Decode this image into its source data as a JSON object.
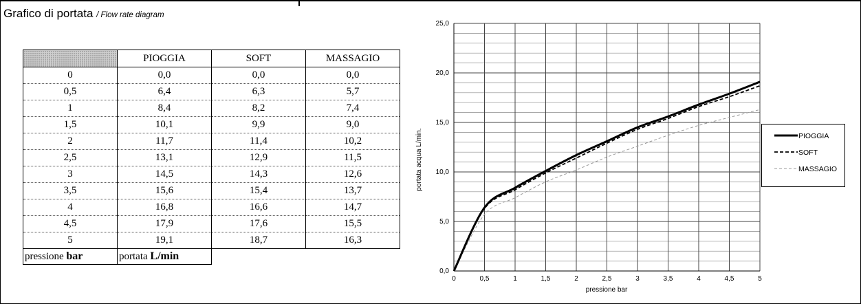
{
  "header": {
    "title_main": "Grafico di portata",
    "title_sub": "/ Flow rate diagram"
  },
  "table": {
    "columns": [
      "PIOGGIA",
      "SOFT",
      "MASSAGIO"
    ],
    "rows": [
      [
        "0",
        "0,0",
        "0,0",
        "0,0"
      ],
      [
        "0,5",
        "6,4",
        "6,3",
        "5,7"
      ],
      [
        "1",
        "8,4",
        "8,2",
        "7,4"
      ],
      [
        "1,5",
        "10,1",
        "9,9",
        "9,0"
      ],
      [
        "2",
        "11,7",
        "11,4",
        "10,2"
      ],
      [
        "2,5",
        "13,1",
        "12,9",
        "11,5"
      ],
      [
        "3",
        "14,5",
        "14,3",
        "12,6"
      ],
      [
        "3,5",
        "15,6",
        "15,4",
        "13,7"
      ],
      [
        "4",
        "16,8",
        "16,6",
        "14,7"
      ],
      [
        "4,5",
        "17,9",
        "17,6",
        "15,5"
      ],
      [
        "5",
        "19,1",
        "18,7",
        "16,3"
      ]
    ],
    "footer": {
      "pressure_label": "pressione",
      "pressure_unit": "bar",
      "flow_label": "portata",
      "flow_unit": "L/min"
    }
  },
  "chart_data": {
    "type": "line",
    "x": [
      0,
      0.5,
      1,
      1.5,
      2,
      2.5,
      3,
      3.5,
      4,
      4.5,
      5
    ],
    "series": [
      {
        "name": "PIOGGIA",
        "values": [
          0.0,
          6.4,
          8.4,
          10.1,
          11.7,
          13.1,
          14.5,
          15.6,
          16.8,
          17.9,
          19.1
        ],
        "style": "solid-thick",
        "color": "#000000"
      },
      {
        "name": "SOFT",
        "values": [
          0.0,
          6.3,
          8.2,
          9.9,
          11.4,
          12.9,
          14.3,
          15.4,
          16.6,
          17.6,
          18.7
        ],
        "style": "dashed",
        "color": "#000000"
      },
      {
        "name": "MASSAGIO",
        "values": [
          0.0,
          5.7,
          7.4,
          9.0,
          10.2,
          11.5,
          12.6,
          13.7,
          14.7,
          15.5,
          16.3
        ],
        "style": "dashed-light",
        "color": "#9a9a9a"
      }
    ],
    "xlabel": "pressione  bar",
    "ylabel": "portata acqua  L/min.",
    "xlim": [
      0,
      5
    ],
    "ylim": [
      0,
      25
    ],
    "x_ticks": [
      "0",
      "0,5",
      "1",
      "1,5",
      "2",
      "2,5",
      "3",
      "3,5",
      "4",
      "4,5",
      "5"
    ],
    "y_ticks": [
      "0,0",
      "5,0",
      "10,0",
      "15,0",
      "20,0",
      "25,0"
    ],
    "grid": true,
    "legend_position": "right"
  }
}
